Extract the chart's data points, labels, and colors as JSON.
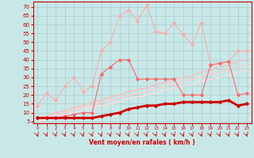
{
  "x": [
    0,
    1,
    2,
    3,
    4,
    5,
    6,
    7,
    8,
    9,
    10,
    11,
    12,
    13,
    14,
    15,
    16,
    17,
    18,
    19,
    20,
    21,
    22,
    23
  ],
  "series": [
    {
      "name": "light_pink_top",
      "color": "#ffaaaa",
      "linewidth": 0.8,
      "marker": "D",
      "markersize": 1.8,
      "values": [
        14,
        21,
        17,
        25,
        30,
        22,
        25,
        45,
        50,
        65,
        68,
        62,
        71,
        56,
        55,
        61,
        54,
        49,
        61,
        37,
        38,
        39,
        45,
        45
      ]
    },
    {
      "name": "medium_pink_1",
      "color": "#ff6666",
      "linewidth": 0.8,
      "marker": "D",
      "markersize": 1.8,
      "values": [
        7,
        7,
        7,
        8,
        9,
        10,
        10,
        32,
        36,
        40,
        40,
        29,
        29,
        29,
        29,
        29,
        20,
        20,
        20,
        37,
        38,
        39,
        20,
        21
      ]
    },
    {
      "name": "regression_line_1",
      "color": "#ffbbbb",
      "linewidth": 1.0,
      "marker": null,
      "values": [
        7,
        8,
        10,
        11,
        13,
        14,
        16,
        17,
        19,
        20,
        22,
        23,
        24,
        26,
        27,
        29,
        30,
        31,
        33,
        34,
        36,
        37,
        39,
        40
      ]
    },
    {
      "name": "regression_line_2",
      "color": "#ffcccc",
      "linewidth": 1.0,
      "marker": null,
      "values": [
        6,
        8,
        9,
        10,
        12,
        13,
        14,
        16,
        17,
        18,
        20,
        21,
        22,
        24,
        25,
        26,
        28,
        29,
        30,
        32,
        33,
        34,
        36,
        37
      ]
    },
    {
      "name": "regression_line_3",
      "color": "#ffdddd",
      "linewidth": 1.0,
      "marker": null,
      "values": [
        5,
        6,
        8,
        9,
        10,
        11,
        13,
        14,
        15,
        16,
        18,
        19,
        20,
        21,
        23,
        24,
        25,
        26,
        28,
        29,
        30,
        31,
        33,
        34
      ]
    },
    {
      "name": "bold_red_bottom",
      "color": "#cc0000",
      "linewidth": 2.0,
      "marker": "D",
      "markersize": 1.8,
      "values": [
        7,
        7,
        7,
        7,
        7,
        7,
        7,
        8,
        9,
        10,
        12,
        13,
        14,
        14,
        15,
        15,
        16,
        16,
        16,
        16,
        16,
        17,
        14,
        15
      ]
    }
  ],
  "xlabel": "Vent moyen/en rafales ( km/h )",
  "ylabel_ticks": [
    5,
    10,
    15,
    20,
    25,
    30,
    35,
    40,
    45,
    50,
    55,
    60,
    65,
    70
  ],
  "ylim": [
    4,
    73
  ],
  "xlim": [
    -0.5,
    23.5
  ],
  "background_color": "#c8e8e8",
  "grid_color": "#aacccc",
  "tick_color": "#cc0000",
  "label_color": "#cc0000",
  "arrow_color": "#cc0000",
  "spine_color": "#cc0000"
}
